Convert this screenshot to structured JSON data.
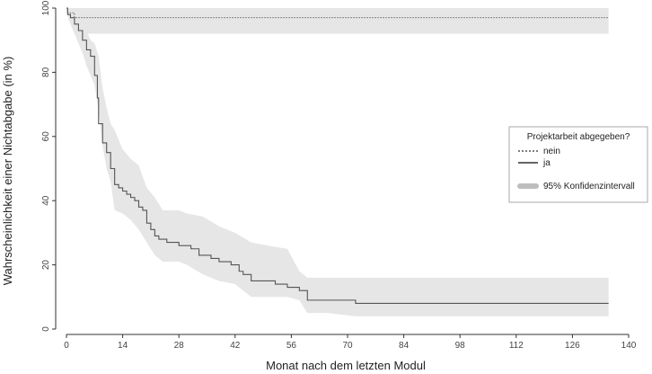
{
  "chart_data": {
    "type": "line",
    "title": "",
    "xlabel": "Monat nach dem letzten Modul",
    "ylabel": "Wahrscheinlichkeit einer Nichtabgabe (in %)",
    "xlim": [
      0,
      140
    ],
    "ylim": [
      0,
      100
    ],
    "x_ticks": [
      0,
      14,
      28,
      42,
      56,
      70,
      84,
      98,
      112,
      126,
      140
    ],
    "y_ticks": [
      0,
      20,
      40,
      60,
      80,
      100
    ],
    "x_tick_labels": [
      "0",
      "14",
      "28",
      "42",
      "56",
      "70",
      "84",
      "98",
      "112",
      "126",
      "140"
    ],
    "y_tick_labels": [
      "0",
      "20",
      "40",
      "60",
      "80",
      "100"
    ],
    "grid": false,
    "legend": {
      "title": "Projektarbeit abgegeben?",
      "position": "right",
      "items": [
        {
          "label": "nein",
          "style": "dotted"
        },
        {
          "label": "ja",
          "style": "solid"
        },
        {
          "label": "95% Konfidenzintervall",
          "style": "band"
        }
      ]
    },
    "colors": {
      "line": "#555555",
      "band": "#e6e6e6",
      "band_legend": "#bdbdbd"
    },
    "series": [
      {
        "name": "nein",
        "style": "dotted",
        "x": [
          0,
          0.3,
          0.3,
          2,
          2,
          135
        ],
        "y": [
          100,
          100,
          98.5,
          98.5,
          97,
          97
        ],
        "ci_x": [
          0,
          0.5,
          0.5,
          2,
          2,
          135
        ],
        "ci_lower": [
          100,
          100,
          96,
          96,
          92,
          92
        ],
        "ci_upper": [
          100,
          100,
          100,
          100,
          100,
          100
        ]
      },
      {
        "name": "ja",
        "style": "solid",
        "x": [
          0,
          0.3,
          0.3,
          1,
          1,
          2,
          2,
          3,
          3,
          4,
          4,
          5,
          5,
          6,
          6,
          7,
          7,
          7.7,
          7.7,
          8,
          8,
          9,
          9,
          10,
          10,
          11,
          11,
          12,
          12,
          13,
          13,
          14,
          14,
          15,
          15,
          16,
          16,
          17,
          17,
          18,
          18,
          19,
          19,
          20,
          20,
          21,
          21,
          22,
          22,
          23,
          23,
          25,
          25,
          28,
          28,
          31,
          31,
          33,
          33,
          36,
          36,
          38,
          38,
          41,
          41,
          43,
          43,
          44,
          44,
          46,
          46,
          48,
          48,
          52,
          52,
          55,
          55,
          58,
          58,
          60,
          60,
          72,
          72,
          135
        ],
        "y": [
          100,
          100,
          98,
          98,
          97,
          97,
          95,
          95,
          93,
          93,
          90,
          90,
          87,
          87,
          85,
          85,
          79,
          79,
          72,
          72,
          64,
          64,
          58,
          58,
          55,
          55,
          50,
          50,
          45,
          45,
          44,
          44,
          43,
          43,
          42,
          42,
          41,
          41,
          40,
          40,
          38,
          38,
          37,
          37,
          33,
          33,
          31,
          31,
          29,
          29,
          28,
          28,
          27,
          27,
          26,
          26,
          25,
          25,
          23,
          23,
          22,
          22,
          21,
          21,
          20,
          20,
          18,
          18,
          17,
          17,
          15,
          15,
          15,
          15,
          14,
          14,
          13,
          13,
          12,
          12,
          9,
          9,
          8,
          8
        ],
        "ci_x": [
          0,
          1,
          2,
          3,
          4,
          5,
          6,
          7,
          8,
          9,
          10,
          11,
          12,
          14,
          16,
          18,
          20,
          22,
          24,
          28,
          30,
          34,
          38,
          42,
          46,
          50,
          55,
          58,
          60,
          65,
          72,
          135
        ],
        "ci_lower": [
          99,
          95,
          92,
          89,
          86,
          82,
          79,
          76,
          68,
          57,
          50,
          46,
          37,
          36,
          34,
          31,
          27,
          23,
          21,
          21,
          20,
          17,
          15,
          14,
          10,
          10,
          10,
          9,
          5,
          5,
          4,
          4
        ],
        "ci_upper": [
          100,
          100,
          98,
          97,
          95,
          93,
          90,
          89,
          85,
          75,
          69,
          64,
          62,
          56,
          53,
          51,
          44,
          41,
          37,
          37,
          36,
          35,
          32,
          30,
          27,
          26,
          25,
          18,
          16,
          16,
          16,
          16
        ]
      }
    ]
  }
}
